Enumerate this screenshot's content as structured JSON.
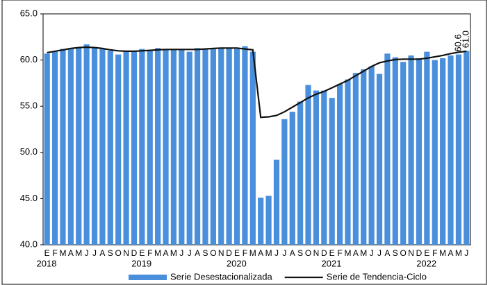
{
  "chart_data": {
    "type": "bar-line",
    "categories": [
      "E",
      "F",
      "M",
      "A",
      "M",
      "J",
      "J",
      "A",
      "S",
      "O",
      "N",
      "D",
      "E",
      "F",
      "M",
      "A",
      "M",
      "J",
      "J",
      "A",
      "S",
      "O",
      "N",
      "D",
      "E",
      "F",
      "M",
      "A",
      "M",
      "J",
      "J",
      "A",
      "S",
      "O",
      "N",
      "D",
      "E",
      "F",
      "M",
      "A",
      "M",
      "J",
      "J",
      "A",
      "S",
      "O",
      "N",
      "D",
      "E",
      "F",
      "M",
      "A",
      "M",
      "J"
    ],
    "years": [
      "2018",
      "2019",
      "2020",
      "2021",
      "2022"
    ],
    "series": [
      {
        "name": "Serie Desestacionalizada",
        "type": "bar",
        "color": "#4a8fdb",
        "values": [
          60.7,
          60.9,
          61.2,
          61.3,
          61.3,
          61.7,
          61.4,
          61.2,
          61.0,
          60.6,
          60.9,
          60.9,
          61.2,
          61.1,
          61.3,
          61.1,
          61.2,
          61.2,
          60.9,
          61.3,
          61.2,
          61.2,
          61.3,
          61.3,
          61.2,
          61.5,
          60.9,
          45.1,
          45.3,
          49.2,
          53.6,
          54.4,
          55.5,
          57.3,
          56.7,
          56.7,
          55.9,
          57.4,
          57.9,
          58.6,
          59.0,
          59.3,
          58.5,
          60.7,
          60.3,
          59.8,
          60.5,
          60.2,
          60.9,
          60.0,
          60.2,
          60.5,
          60.6,
          61.0
        ],
        "value_labels": [
          null,
          null,
          null,
          null,
          null,
          null,
          null,
          null,
          null,
          null,
          null,
          null,
          null,
          null,
          null,
          null,
          null,
          null,
          null,
          null,
          null,
          null,
          null,
          null,
          null,
          null,
          null,
          null,
          null,
          null,
          null,
          null,
          null,
          null,
          null,
          null,
          null,
          null,
          null,
          null,
          null,
          null,
          null,
          null,
          null,
          null,
          null,
          null,
          null,
          null,
          null,
          null,
          "60.6",
          "61.0"
        ]
      },
      {
        "name": "Serie de Tendencia-Ciclo",
        "type": "line",
        "color": "#111111",
        "values": [
          60.8,
          60.95,
          61.1,
          61.25,
          61.35,
          61.4,
          61.35,
          61.25,
          61.1,
          61.0,
          60.95,
          60.95,
          61.0,
          61.05,
          61.1,
          61.15,
          61.15,
          61.15,
          61.15,
          61.15,
          61.2,
          61.25,
          61.3,
          61.3,
          61.3,
          61.2,
          61.1,
          53.8,
          53.85,
          54.0,
          54.4,
          54.9,
          55.4,
          55.9,
          56.3,
          56.6,
          57.0,
          57.4,
          57.8,
          58.3,
          58.8,
          59.3,
          59.7,
          59.9,
          60.05,
          60.1,
          60.1,
          60.1,
          60.2,
          60.35,
          60.5,
          60.7,
          60.85,
          60.95
        ]
      }
    ],
    "ylim": [
      40,
      65
    ],
    "yticks": [
      {
        "value": 40,
        "label": "40.0"
      },
      {
        "value": 45,
        "label": "45.0"
      },
      {
        "value": 50,
        "label": "50.0"
      },
      {
        "value": 55,
        "label": "55.0"
      },
      {
        "value": 60,
        "label": "60.0"
      },
      {
        "value": 65,
        "label": "65.0"
      }
    ],
    "grid": false
  }
}
